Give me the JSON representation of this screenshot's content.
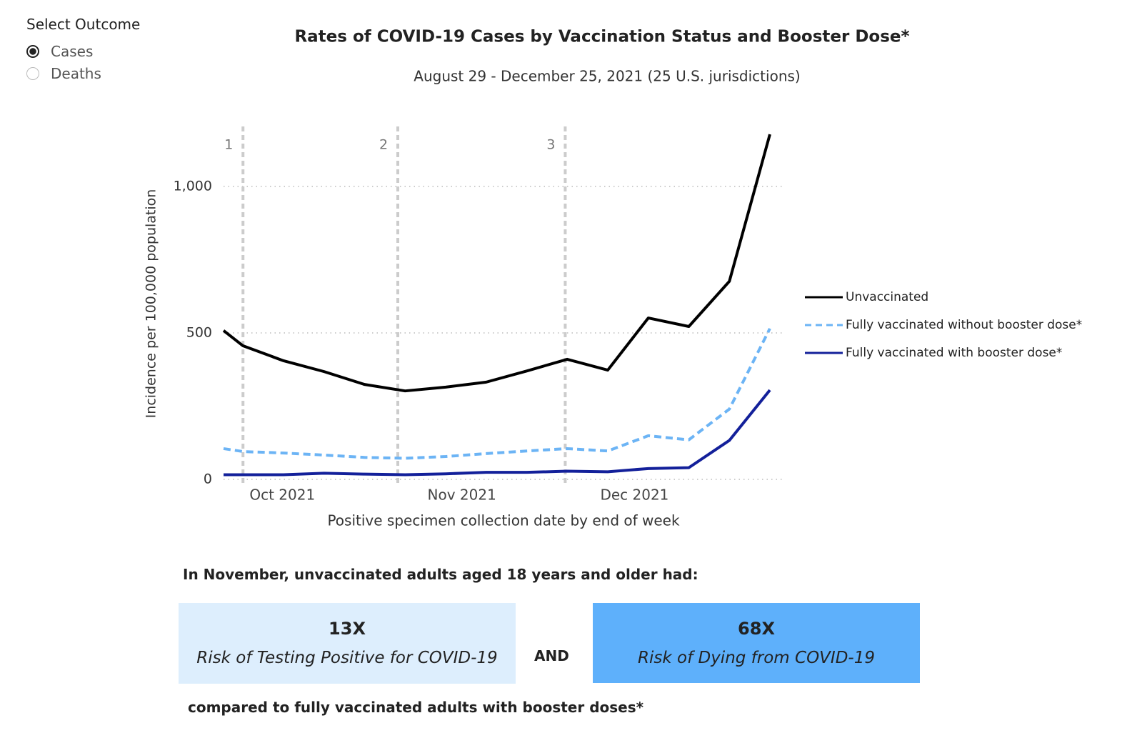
{
  "outcome_selector": {
    "label": "Select Outcome",
    "options": [
      "Cases",
      "Deaths"
    ],
    "selected": "Cases"
  },
  "chart_data": {
    "type": "line",
    "title": "Rates of COVID-19 Cases by Vaccination Status and Booster Dose*",
    "subtitle": "August 29 - December 25, 2021 (25 U.S. jurisdictions)",
    "y_label": "Incidence per 100,000 population",
    "x_label": "Positive specimen collection date by end of week",
    "x": [
      -0.48,
      0,
      1,
      2,
      3,
      4,
      5,
      6,
      7,
      8,
      9,
      10,
      11,
      12,
      13
    ],
    "xlim": [
      -0.48,
      13.3
    ],
    "xticks": [
      {
        "value": 0.97,
        "label": "Oct 2021"
      },
      {
        "value": 5.4,
        "label": "Nov 2021"
      },
      {
        "value": 9.66,
        "label": "Dec 2021"
      }
    ],
    "ylim": [
      0,
      1200
    ],
    "yticks": [
      0,
      500,
      {
        "value": 1000,
        "label": "1,000"
      }
    ],
    "grid": true,
    "legend": "right",
    "annotations": [
      {
        "x": 0,
        "label": "1"
      },
      {
        "x": 3.82,
        "label": "2"
      },
      {
        "x": 7.95,
        "label": "3"
      }
    ],
    "series": [
      {
        "name": "Unvaccinated",
        "color": "#000000",
        "dash": false,
        "values": [
          508,
          456,
          405,
          368,
          324,
          302,
          315,
          332,
          370,
          410,
          373,
          551,
          522,
          676,
          1178
        ]
      },
      {
        "name": "Fully vaccinated without booster dose*",
        "color": "#6cb4f5",
        "dash": true,
        "values": [
          105,
          95,
          90,
          83,
          75,
          72,
          78,
          88,
          97,
          105,
          97,
          149,
          135,
          240,
          515
        ]
      },
      {
        "name": "Fully vaccinated with booster dose*",
        "color": "#13209a",
        "dash": false,
        "values": [
          16,
          16,
          16,
          21,
          18,
          16,
          19,
          24,
          24,
          28,
          26,
          37,
          40,
          133,
          305
        ]
      }
    ]
  },
  "summary": {
    "intro": "In November, unvaccinated adults aged 18 years and older had:",
    "cards": [
      {
        "value": "13X",
        "text": "Risk of Testing Positive for COVID-19"
      },
      {
        "value": "68X",
        "text": "Risk of Dying from COVID-19"
      }
    ],
    "joiner": "AND",
    "outro": "compared to fully vaccinated adults with booster doses*"
  }
}
